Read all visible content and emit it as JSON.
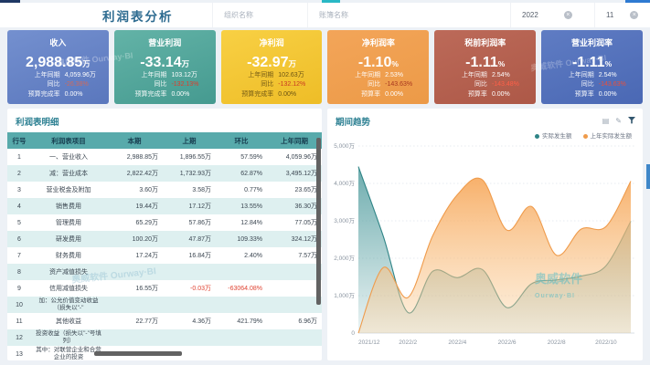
{
  "header": {
    "title": "利润表分析",
    "filters": [
      {
        "placeholder": "组织名称"
      },
      {
        "placeholder": "账簿名称"
      }
    ],
    "year": {
      "value": "2022"
    },
    "month": {
      "value": "11"
    }
  },
  "kpi_cards": [
    {
      "title": "收入",
      "value": "2,988.85",
      "unit": "万",
      "bg1": "#7490cf",
      "bg2": "#5a77bd",
      "dark_text": false,
      "neg_color": "#cf6a5c",
      "rows": [
        [
          "上年同期",
          "4,059.96万"
        ],
        [
          "同比",
          "-26.38%"
        ],
        [
          "预算完成率",
          "0.00%"
        ]
      ]
    },
    {
      "title": "营业利润",
      "value": "-33.14",
      "unit": "万",
      "bg1": "#63b3a7",
      "bg2": "#459a90",
      "dark_text": false,
      "neg_color": "#e13b2a",
      "rows": [
        [
          "上年同期",
          "103.12万"
        ],
        [
          "同比",
          "-132.13%"
        ],
        [
          "预算完成率",
          "0.00%"
        ]
      ]
    },
    {
      "title": "净利润",
      "value": "-32.97",
      "unit": "万",
      "bg1": "#f8d044",
      "bg2": "#eebd27",
      "dark_text": true,
      "neg_color": "#c93a22",
      "rows": [
        [
          "上年同期",
          "102.63万"
        ],
        [
          "同比",
          "-132.12%"
        ],
        [
          "预算完成率",
          "0.00%"
        ]
      ]
    },
    {
      "title": "净利润率",
      "value": "-1.10",
      "unit": "%",
      "bg1": "#f3a559",
      "bg2": "#ec9a47",
      "dark_text": false,
      "neg_color": "#a8371f",
      "rows": [
        [
          "上年同期",
          "2.53%"
        ],
        [
          "同比",
          "-143.63%"
        ],
        [
          "预算率",
          "0.00%"
        ]
      ]
    },
    {
      "title": "税前利润率",
      "value": "-1.11",
      "unit": "%",
      "bg1": "#bc6a59",
      "bg2": "#ad5847",
      "dark_text": false,
      "neg_color": "#ff5f48",
      "rows": [
        [
          "上年同期",
          "2.54%"
        ],
        [
          "同比",
          "-143.48%"
        ],
        [
          "预算率",
          "0.00%"
        ]
      ]
    },
    {
      "title": "营业利润率",
      "value": "-1.11",
      "unit": "%",
      "bg1": "#5f7cc3",
      "bg2": "#4a68b4",
      "dark_text": false,
      "neg_color": "#e8503c",
      "rows": [
        [
          "上年同期",
          "2.54%"
        ],
        [
          "同比",
          "-143.63%"
        ],
        [
          "预算率",
          "0.00%"
        ]
      ]
    }
  ],
  "table": {
    "title": "利润表明细",
    "headers": [
      "行号",
      "利润表项目",
      "本期",
      "上期",
      "环比",
      "上年同期"
    ],
    "rows": [
      [
        "1",
        "一、营业收入",
        "2,988.85万",
        "1,896.55万",
        "57.59%",
        "4,059.96万"
      ],
      [
        "2",
        "减：营业成本",
        "2,822.42万",
        "1,732.93万",
        "62.87%",
        "3,495.12万"
      ],
      [
        "3",
        "营业税金及附加",
        "3.60万",
        "3.58万",
        "0.77%",
        "23.65万"
      ],
      [
        "4",
        "销售费用",
        "19.44万",
        "17.12万",
        "13.55%",
        "36.30万"
      ],
      [
        "5",
        "管理费用",
        "65.29万",
        "57.86万",
        "12.84%",
        "77.05万"
      ],
      [
        "6",
        "研发费用",
        "100.20万",
        "47.87万",
        "109.33%",
        "324.12万"
      ],
      [
        "7",
        "财务费用",
        "17.24万",
        "16.84万",
        "2.40%",
        "7.57万"
      ],
      [
        "8",
        "资产减值损失",
        "",
        "",
        "",
        ""
      ],
      [
        "9",
        "信用减值损失",
        "16.55万",
        "-0.03万",
        "-63064.08%",
        ""
      ],
      [
        "10",
        "加：公允价值变动收益（损失以\"-\"",
        "",
        "",
        "",
        ""
      ],
      [
        "11",
        "其他收益",
        "22.77万",
        "4.36万",
        "421.79%",
        "6.96万"
      ],
      [
        "12",
        "投资收益（损失以\"-\"号填列）",
        "",
        "",
        "",
        ""
      ],
      [
        "13",
        "其中：对联营企业和合营企业的投资",
        "",
        "",
        "",
        ""
      ]
    ]
  },
  "chart_data": {
    "type": "area",
    "title": "期间趋势",
    "x": [
      "2021/12",
      "2022/1",
      "2022/2",
      "2022/3",
      "2022/4",
      "2022/5",
      "2022/6",
      "2022/7",
      "2022/8",
      "2022/9",
      "2022/10",
      "2022/11"
    ],
    "x_tick_labels": [
      "2021/12",
      "2022/2",
      "2022/4",
      "2022/6",
      "2022/8",
      "2022/10"
    ],
    "x_tick_index": [
      0,
      2,
      4,
      6,
      8,
      10
    ],
    "series": [
      {
        "name": "实际发生额",
        "color": "#2f8486",
        "fill_top": "rgba(84,158,160,0.85)",
        "fill_bottom": "rgba(84,158,160,0.12)",
        "values": [
          4450,
          2600,
          550,
          1650,
          1480,
          1700,
          680,
          1320,
          1420,
          1520,
          1800,
          2989
        ]
      },
      {
        "name": "上年实际发生额",
        "color": "#ef9b4b",
        "fill_top": "rgba(247,170,95,0.92)",
        "fill_bottom": "rgba(250,210,160,0.35)",
        "values": [
          0,
          1750,
          950,
          2600,
          3700,
          4100,
          2750,
          3380,
          2080,
          2780,
          2850,
          4060
        ]
      }
    ],
    "ylim": [
      0,
      5000
    ],
    "y_ticks": [
      "5,000万",
      "4,000万",
      "3,000万",
      "2,000万",
      "1,000万",
      "0"
    ],
    "legend_position": "top-right",
    "grid": "dotted"
  },
  "watermark": {
    "text": "奥威软件 Ourway·BI",
    "brand": "奥威软件",
    "brand_en": "Ourway·BI"
  }
}
